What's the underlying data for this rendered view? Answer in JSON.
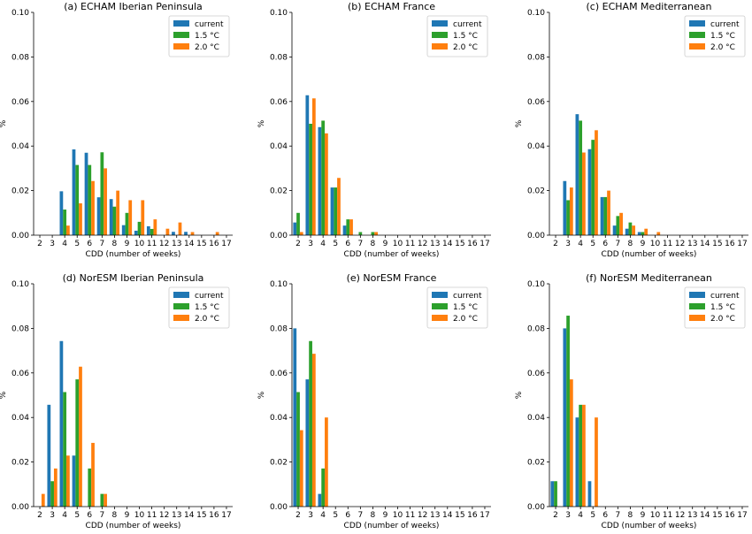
{
  "figure": {
    "colors": {
      "current": "#1f77b4",
      "1.5 °C": "#2ca02c",
      "2.0 °C": "#ff7f0e"
    }
  },
  "chart_data": [
    {
      "type": "bar",
      "title": "(a) ECHAM Iberian Peninsula",
      "xlabel": "CDD (number of weeks)",
      "ylabel": "%",
      "ylim": [
        0,
        0.1
      ],
      "yticks": [
        "0.00",
        "0.02",
        "0.04",
        "0.06",
        "0.08",
        "0.10"
      ],
      "categories": [
        2,
        3,
        4,
        5,
        6,
        7,
        8,
        9,
        10,
        11,
        12,
        13,
        14,
        15,
        16,
        17
      ],
      "legend_position": "top-right",
      "series": [
        {
          "name": "current",
          "values": [
            0,
            0,
            0.0197,
            0.0385,
            0.037,
            0.017,
            0.0162,
            0.0045,
            0.002,
            0.004,
            0,
            0.0015,
            0.0015,
            0,
            0,
            0
          ]
        },
        {
          "name": "1.5 °C",
          "values": [
            0,
            0,
            0.0115,
            0.0315,
            0.0315,
            0.0372,
            0.0128,
            0.01,
            0.006,
            0.0028,
            0,
            0,
            0,
            0,
            0,
            0
          ]
        },
        {
          "name": "2.0 °C",
          "values": [
            0,
            0,
            0.0043,
            0.0143,
            0.0243,
            0.03,
            0.02,
            0.0157,
            0.0157,
            0.0071,
            0.0029,
            0.0057,
            0.0014,
            0,
            0.0014,
            0
          ]
        }
      ]
    },
    {
      "type": "bar",
      "title": "(b) ECHAM France",
      "xlabel": "CDD (number of weeks)",
      "ylabel": "%",
      "ylim": [
        0,
        0.1
      ],
      "yticks": [
        "0.00",
        "0.02",
        "0.04",
        "0.06",
        "0.08",
        "0.10"
      ],
      "categories": [
        2,
        3,
        4,
        5,
        6,
        7,
        8,
        9,
        10,
        11,
        12,
        13,
        14,
        15,
        16,
        17
      ],
      "legend_position": "top-right",
      "series": [
        {
          "name": "current",
          "values": [
            0.0057,
            0.0628,
            0.0485,
            0.0214,
            0.0043,
            0,
            0,
            0,
            0,
            0,
            0,
            0,
            0,
            0,
            0,
            0
          ]
        },
        {
          "name": "1.5 °C",
          "values": [
            0.01,
            0.05,
            0.0514,
            0.0214,
            0.0071,
            0.0014,
            0.0014,
            0,
            0,
            0,
            0,
            0,
            0,
            0,
            0,
            0
          ]
        },
        {
          "name": "2.0 °C",
          "values": [
            0.0014,
            0.0614,
            0.0457,
            0.0257,
            0.0071,
            0,
            0.0014,
            0,
            0,
            0,
            0,
            0,
            0,
            0,
            0,
            0
          ]
        }
      ]
    },
    {
      "type": "bar",
      "title": "(c) ECHAM Mediterranean",
      "xlabel": "CDD (number of weeks)",
      "ylabel": "%",
      "ylim": [
        0,
        0.1
      ],
      "yticks": [
        "0.00",
        "0.02",
        "0.04",
        "0.06",
        "0.08",
        "0.10"
      ],
      "categories": [
        2,
        3,
        4,
        5,
        6,
        7,
        8,
        9,
        10,
        11,
        12,
        13,
        14,
        15,
        16,
        17
      ],
      "legend_position": "top-right",
      "series": [
        {
          "name": "current",
          "values": [
            0,
            0.0243,
            0.0543,
            0.0386,
            0.0171,
            0.0043,
            0.0029,
            0.0014,
            0,
            0,
            0,
            0,
            0,
            0,
            0,
            0
          ]
        },
        {
          "name": "1.5 °C",
          "values": [
            0,
            0.0157,
            0.0514,
            0.0428,
            0.0171,
            0.0086,
            0.0057,
            0.0014,
            0,
            0,
            0,
            0,
            0,
            0,
            0,
            0
          ]
        },
        {
          "name": "2.0 °C",
          "values": [
            0,
            0.0214,
            0.0371,
            0.0471,
            0.02,
            0.01,
            0.0043,
            0.0029,
            0.0014,
            0,
            0,
            0,
            0,
            0,
            0,
            0
          ]
        }
      ]
    },
    {
      "type": "bar",
      "title": "(d) NorESM Iberian Peninsula",
      "xlabel": "CDD (number of weeks)",
      "ylabel": "%",
      "ylim": [
        0,
        0.1
      ],
      "yticks": [
        "0.00",
        "0.02",
        "0.04",
        "0.06",
        "0.08",
        "0.10"
      ],
      "categories": [
        2,
        3,
        4,
        5,
        6,
        7,
        8,
        9,
        10,
        11,
        12,
        13,
        14,
        15,
        16,
        17
      ],
      "legend_position": "top-right",
      "series": [
        {
          "name": "current",
          "values": [
            0,
            0.0457,
            0.0743,
            0.0229,
            0,
            0,
            0,
            0,
            0,
            0,
            0,
            0,
            0,
            0,
            0,
            0
          ]
        },
        {
          "name": "1.5 °C",
          "values": [
            0,
            0.0114,
            0.0514,
            0.0571,
            0.0171,
            0.0057,
            0,
            0,
            0,
            0,
            0,
            0,
            0,
            0,
            0,
            0
          ]
        },
        {
          "name": "2.0 °C",
          "values": [
            0.0057,
            0.0171,
            0.0229,
            0.0628,
            0.0286,
            0.0057,
            0,
            0,
            0,
            0,
            0,
            0,
            0,
            0,
            0,
            0
          ]
        }
      ]
    },
    {
      "type": "bar",
      "title": "(e) NorESM France",
      "xlabel": "CDD (number of weeks)",
      "ylabel": "%",
      "ylim": [
        0,
        0.1
      ],
      "yticks": [
        "0.00",
        "0.02",
        "0.04",
        "0.06",
        "0.08",
        "0.10"
      ],
      "categories": [
        2,
        3,
        4,
        5,
        6,
        7,
        8,
        9,
        10,
        11,
        12,
        13,
        14,
        15,
        16,
        17
      ],
      "legend_position": "top-right",
      "series": [
        {
          "name": "current",
          "values": [
            0.08,
            0.0571,
            0.0057,
            0,
            0,
            0,
            0,
            0,
            0,
            0,
            0,
            0,
            0,
            0,
            0,
            0
          ]
        },
        {
          "name": "1.5 °C",
          "values": [
            0.0514,
            0.0743,
            0.0171,
            0,
            0,
            0,
            0,
            0,
            0,
            0,
            0,
            0,
            0,
            0,
            0,
            0
          ]
        },
        {
          "name": "2.0 °C",
          "values": [
            0.0343,
            0.0686,
            0.04,
            0,
            0,
            0,
            0,
            0,
            0,
            0,
            0,
            0,
            0,
            0,
            0,
            0
          ]
        }
      ]
    },
    {
      "type": "bar",
      "title": "(f) NorESM Mediterranean",
      "xlabel": "CDD (number of weeks)",
      "ylabel": "%",
      "ylim": [
        0,
        0.1
      ],
      "yticks": [
        "0.00",
        "0.02",
        "0.04",
        "0.06",
        "0.08",
        "0.10"
      ],
      "categories": [
        2,
        3,
        4,
        5,
        6,
        7,
        8,
        9,
        10,
        11,
        12,
        13,
        14,
        15,
        16,
        17
      ],
      "legend_position": "top-right",
      "series": [
        {
          "name": "current",
          "values": [
            0.0114,
            0.08,
            0.04,
            0.0114,
            0,
            0,
            0,
            0,
            0,
            0,
            0,
            0,
            0,
            0,
            0,
            0
          ]
        },
        {
          "name": "1.5 °C",
          "values": [
            0.0114,
            0.0857,
            0.0457,
            0,
            0,
            0,
            0,
            0,
            0,
            0,
            0,
            0,
            0,
            0,
            0,
            0
          ]
        },
        {
          "name": "2.0 °C",
          "values": [
            0,
            0.0571,
            0.0457,
            0.04,
            0,
            0,
            0,
            0,
            0,
            0,
            0,
            0,
            0,
            0,
            0,
            0
          ]
        }
      ]
    }
  ]
}
